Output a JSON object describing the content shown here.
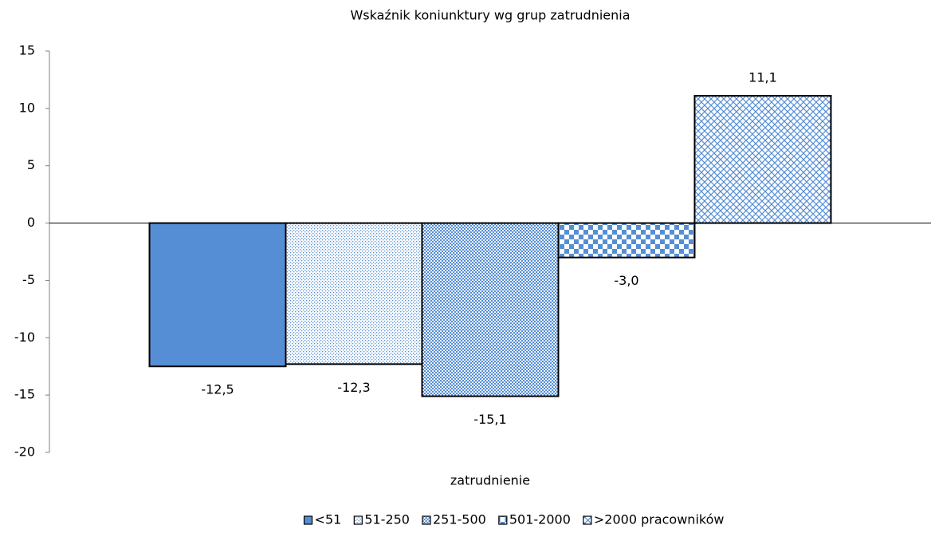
{
  "chart_data": {
    "type": "bar",
    "title": "Wskaźnik koniunktury wg grup zatrudnienia",
    "x_label": "zatrudnienie",
    "categories": [
      null
    ],
    "series": [
      {
        "name": "<51",
        "color": "#558ed5",
        "pattern": "solid",
        "values": [
          -12.5
        ],
        "value_labels": [
          "-12,5"
        ]
      },
      {
        "name": "51-250",
        "color": "#558ed5",
        "pattern": "dots",
        "values": [
          -12.3
        ],
        "value_labels": [
          "-12,3"
        ]
      },
      {
        "name": "251-500",
        "color": "#558ed5",
        "pattern": "dense-dots",
        "values": [
          -15.1
        ],
        "value_labels": [
          "-15,1"
        ]
      },
      {
        "name": "501-2000",
        "color": "#558ed5",
        "pattern": "checker",
        "values": [
          -3.0
        ],
        "value_labels": [
          "-3,0"
        ]
      },
      {
        "name": ">2000 pracowników",
        "color": "#558ed5",
        "pattern": "diamond",
        "values": [
          11.1
        ],
        "value_labels": [
          "11,1"
        ]
      }
    ],
    "ylim": [
      -20,
      15
    ],
    "yticks": [
      -20,
      -15,
      -10,
      -5,
      0,
      5,
      10,
      15
    ],
    "grid": false,
    "legend": "bottom"
  }
}
